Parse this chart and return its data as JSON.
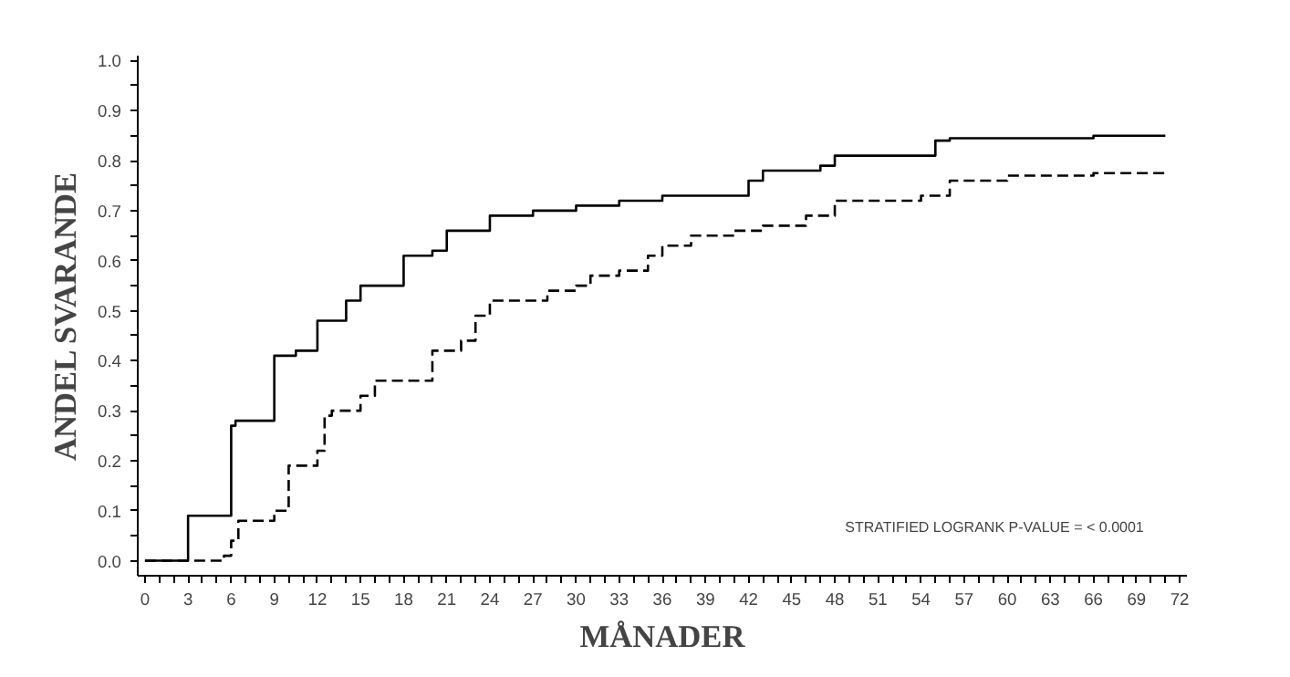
{
  "chart_data": {
    "type": "step",
    "xlabel": "MÅNADER",
    "ylabel": "ANDEL SVARANDE",
    "xlim": [
      -0.5,
      72.5
    ],
    "ylim": [
      -0.03,
      1.01
    ],
    "xticks": [
      0,
      {
        "value": 1,
        "label": null
      },
      {
        "value": 2,
        "label": null
      },
      3,
      {
        "value": 4,
        "label": null
      },
      {
        "value": 5,
        "label": null
      },
      6,
      {
        "value": 7,
        "label": null
      },
      {
        "value": 8,
        "label": null
      },
      9,
      {
        "value": 10,
        "label": null
      },
      {
        "value": 11,
        "label": null
      },
      12,
      {
        "value": 13,
        "label": null
      },
      {
        "value": 14,
        "label": null
      },
      15,
      {
        "value": 16,
        "label": null
      },
      {
        "value": 17,
        "label": null
      },
      18,
      {
        "value": 19,
        "label": null
      },
      {
        "value": 20,
        "label": null
      },
      21,
      {
        "value": 22,
        "label": null
      },
      {
        "value": 23,
        "label": null
      },
      24,
      {
        "value": 25,
        "label": null
      },
      {
        "value": 26,
        "label": null
      },
      27,
      {
        "value": 28,
        "label": null
      },
      {
        "value": 29,
        "label": null
      },
      30,
      {
        "value": 31,
        "label": null
      },
      {
        "value": 32,
        "label": null
      },
      33,
      {
        "value": 34,
        "label": null
      },
      {
        "value": 35,
        "label": null
      },
      36,
      {
        "value": 37,
        "label": null
      },
      {
        "value": 38,
        "label": null
      },
      39,
      {
        "value": 40,
        "label": null
      },
      {
        "value": 41,
        "label": null
      },
      42,
      {
        "value": 43,
        "label": null
      },
      {
        "value": 44,
        "label": null
      },
      45,
      {
        "value": 46,
        "label": null
      },
      {
        "value": 47,
        "label": null
      },
      48,
      {
        "value": 49,
        "label": null
      },
      {
        "value": 50,
        "label": null
      },
      51,
      {
        "value": 52,
        "label": null
      },
      {
        "value": 53,
        "label": null
      },
      54,
      {
        "value": 55,
        "label": null
      },
      {
        "value": 56,
        "label": null
      },
      57,
      {
        "value": 58,
        "label": null
      },
      {
        "value": 59,
        "label": null
      },
      60,
      {
        "value": 61,
        "label": null
      },
      {
        "value": 62,
        "label": null
      },
      63,
      {
        "value": 64,
        "label": null
      },
      {
        "value": 65,
        "label": null
      },
      66,
      {
        "value": 67,
        "label": null
      },
      {
        "value": 68,
        "label": null
      },
      69,
      {
        "value": 70,
        "label": null
      },
      {
        "value": 71,
        "label": null
      },
      72
    ],
    "yticks": [
      {
        "value": 0,
        "label": "0.0"
      },
      {
        "value": 0.05,
        "label": null
      },
      {
        "value": 0.1,
        "label": "0.1"
      },
      {
        "value": 0.15,
        "label": null
      },
      {
        "value": 0.2,
        "label": "0.2"
      },
      {
        "value": 0.25,
        "label": null
      },
      {
        "value": 0.3,
        "label": "0.3"
      },
      {
        "value": 0.35,
        "label": null
      },
      {
        "value": 0.4,
        "label": "0.4"
      },
      {
        "value": 0.45,
        "label": null
      },
      {
        "value": 0.5,
        "label": "0.5"
      },
      {
        "value": 0.55,
        "label": null
      },
      {
        "value": 0.6,
        "label": "0.6"
      },
      {
        "value": 0.65,
        "label": null
      },
      {
        "value": 0.7,
        "label": "0.7"
      },
      {
        "value": 0.75,
        "label": null
      },
      {
        "value": 0.8,
        "label": "0.8"
      },
      {
        "value": 0.85,
        "label": null
      },
      {
        "value": 0.9,
        "label": "0.9"
      },
      {
        "value": 0.95,
        "label": null
      },
      {
        "value": 1.0,
        "label": "1.0"
      }
    ],
    "grid": false,
    "series": [
      {
        "color": "#000000",
        "line_style": "solid",
        "x": [
          0,
          3,
          6,
          6.3,
          9,
          10.5,
          12,
          14,
          15,
          18,
          20,
          21,
          24,
          27,
          30,
          33,
          36,
          42,
          43,
          47,
          48,
          55,
          56,
          66,
          71
        ],
        "values": [
          0,
          0.09,
          0.27,
          0.28,
          0.41,
          0.42,
          0.48,
          0.52,
          0.55,
          0.61,
          0.62,
          0.66,
          0.69,
          0.7,
          0.71,
          0.72,
          0.73,
          0.76,
          0.78,
          0.79,
          0.81,
          0.84,
          0.845,
          0.85,
          0.85
        ]
      },
      {
        "color": "#000000",
        "line_style": "dashed",
        "x": [
          0,
          5.5,
          6,
          6.5,
          8,
          9,
          10,
          12,
          12.5,
          13,
          15,
          16,
          20,
          22,
          23,
          24,
          28,
          30,
          31,
          33,
          35,
          36,
          38,
          41,
          43,
          46,
          48,
          54,
          56,
          60,
          66,
          71
        ],
        "values": [
          0,
          0.01,
          0.04,
          0.08,
          0.08,
          0.1,
          0.19,
          0.22,
          0.29,
          0.3,
          0.33,
          0.36,
          0.42,
          0.44,
          0.49,
          0.52,
          0.54,
          0.55,
          0.57,
          0.58,
          0.61,
          0.63,
          0.65,
          0.66,
          0.67,
          0.69,
          0.72,
          0.73,
          0.76,
          0.77,
          0.775,
          0.78
        ]
      }
    ],
    "annotations": [
      "STRATIFIED LOGRANK P-VALUE = < 0.0001"
    ]
  }
}
